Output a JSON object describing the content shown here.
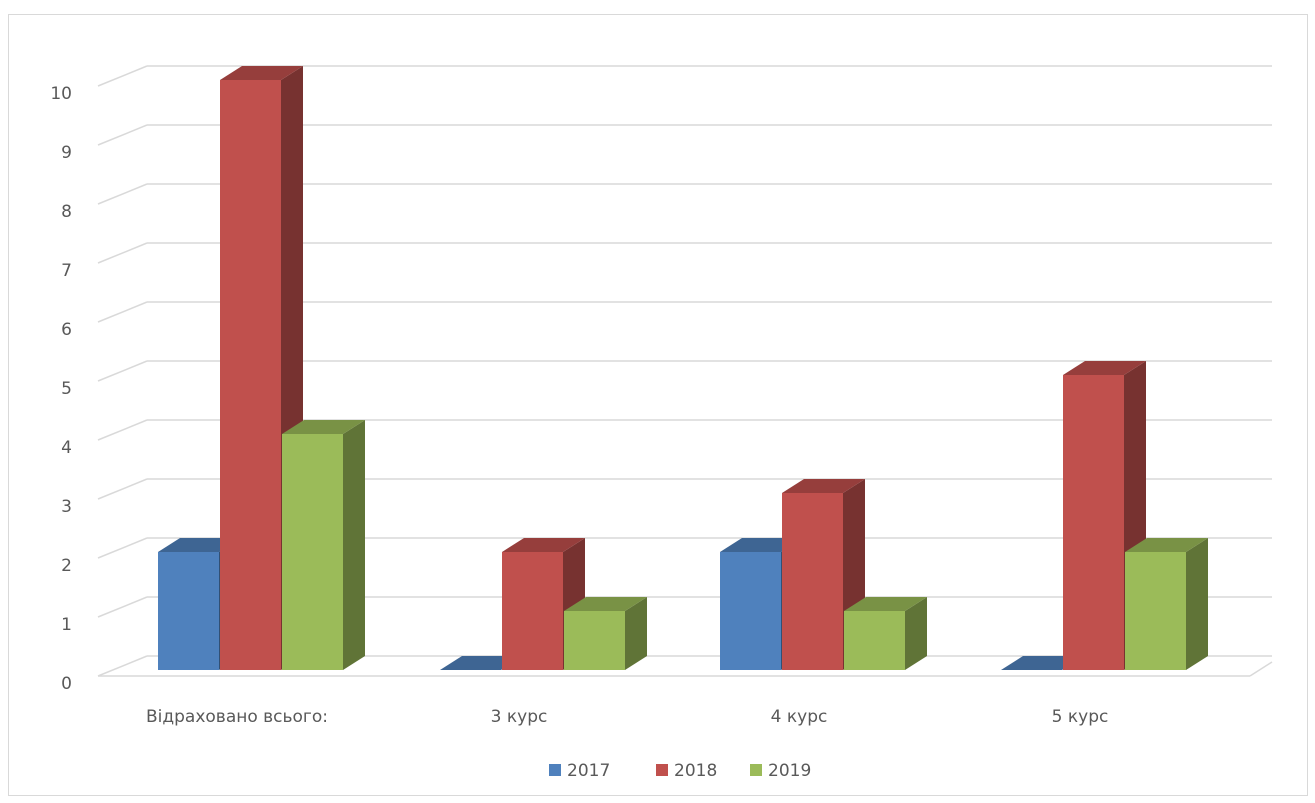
{
  "chart_data": {
    "type": "bar",
    "style": "3d-clustered-column",
    "categories": [
      "Відраховано всього:",
      "3 курс",
      "4 курс",
      "5 курс"
    ],
    "series": [
      {
        "name": "2017",
        "values": [
          2,
          0,
          2,
          0
        ],
        "color": "#4f81bd"
      },
      {
        "name": "2018",
        "values": [
          10,
          2,
          3,
          5
        ],
        "color": "#c0504d"
      },
      {
        "name": "2019",
        "values": [
          4,
          1,
          1,
          2
        ],
        "color": "#9bbb59"
      }
    ],
    "ylim": [
      0,
      10
    ],
    "yticks": [
      0,
      1,
      2,
      3,
      4,
      5,
      6,
      7,
      8,
      9,
      10
    ],
    "grid": true,
    "legend": "bottom"
  }
}
